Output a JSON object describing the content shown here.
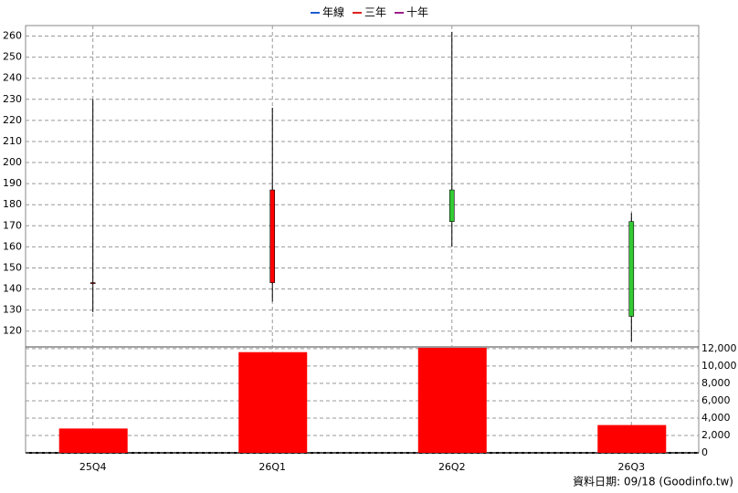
{
  "chart_data": {
    "type": "candlestick",
    "legend": [
      {
        "name": "年線",
        "color": "#1f5fd0"
      },
      {
        "name": "三年",
        "color": "#e02020"
      },
      {
        "name": "十年",
        "color": "#a0208a"
      }
    ],
    "categories": [
      "25Q4",
      "26Q1",
      "26Q2",
      "26Q3"
    ],
    "open": [
      143,
      143,
      187,
      172
    ],
    "high": [
      230,
      226,
      262,
      176
    ],
    "low": [
      129,
      134,
      160,
      115
    ],
    "close": [
      143,
      187,
      172,
      127
    ],
    "up_color": "#ff0000",
    "down_color": "#33cc33",
    "ylim": [
      112.5,
      265
    ],
    "yticks": [
      120,
      130,
      140,
      150,
      160,
      170,
      180,
      190,
      200,
      210,
      220,
      230,
      240,
      250,
      260
    ],
    "volume": {
      "color": "#ff0000",
      "values": [
        2800,
        11600,
        12100,
        3200
      ],
      "ylim": [
        0,
        12200
      ],
      "yticks": [
        0,
        {
          "value": 2000,
          "label": "2,000"
        },
        {
          "value": 4000,
          "label": "4,000"
        },
        {
          "value": 6000,
          "label": "6,000"
        },
        {
          "value": 8000,
          "label": "8,000"
        },
        {
          "value": 10000,
          "label": "10,000"
        },
        {
          "value": 12000,
          "label": "12,000"
        }
      ]
    },
    "grid": true,
    "footer": "資料日期: 09/18  (Goodinfo.tw)"
  }
}
